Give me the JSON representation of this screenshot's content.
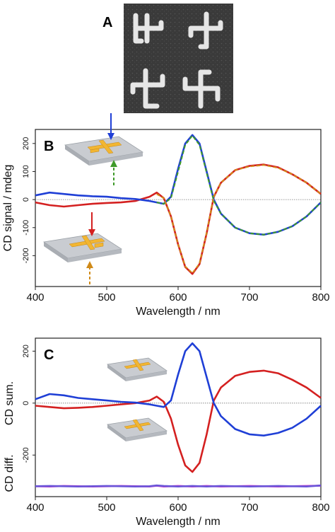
{
  "panel_labels": {
    "a": "A",
    "b": "B",
    "c": "C"
  },
  "colors": {
    "red": "#d42020",
    "blue": "#1f3fd6",
    "green": "#3f9a2a",
    "orange": "#d08a18",
    "magenta": "#cc33cc",
    "purple": "#6a55d8",
    "gold": "#f2b632",
    "plate": "#c9ccd1"
  },
  "chart_data": [
    {
      "panel": "B",
      "type": "line",
      "xlabel": "Wavelength / nm",
      "ylabel": "CD signal / mdeg",
      "xlim": [
        400,
        800
      ],
      "ylim": [
        -310,
        250
      ],
      "xticks": [
        "400",
        "500",
        "600",
        "700",
        "800"
      ],
      "yticks": [
        "200",
        "100",
        "0",
        "-100",
        "-200"
      ],
      "grid": false,
      "x": [
        400,
        420,
        440,
        460,
        480,
        500,
        520,
        540,
        560,
        570,
        580,
        590,
        600,
        610,
        620,
        630,
        640,
        650,
        660,
        680,
        700,
        720,
        740,
        760,
        780,
        800
      ],
      "series": [
        {
          "color": "red",
          "values": [
            -10,
            -20,
            -25,
            -20,
            -15,
            -12,
            -10,
            -5,
            10,
            25,
            5,
            -60,
            -160,
            -240,
            -265,
            -230,
            -120,
            10,
            60,
            105,
            120,
            125,
            115,
            90,
            60,
            20
          ]
        },
        {
          "color": "blue",
          "values": [
            15,
            25,
            20,
            15,
            12,
            10,
            5,
            2,
            -5,
            -10,
            -15,
            10,
            110,
            200,
            230,
            200,
            100,
            0,
            -50,
            -100,
            -120,
            -125,
            -115,
            -95,
            -60,
            -10
          ]
        },
        {
          "color": "green",
          "dashed": true,
          "values": [
            null,
            null,
            null,
            null,
            null,
            null,
            null,
            null,
            null,
            -10,
            -15,
            5,
            100,
            195,
            228,
            195,
            95,
            -5,
            -50,
            -100,
            -120,
            -125,
            -115,
            -95,
            -60,
            -10
          ]
        },
        {
          "color": "orange",
          "dashed": true,
          "values": [
            null,
            null,
            null,
            null,
            null,
            null,
            null,
            null,
            null,
            20,
            5,
            -60,
            -160,
            -238,
            -262,
            -228,
            -118,
            10,
            60,
            105,
            118,
            123,
            113,
            90,
            60,
            20
          ]
        }
      ]
    },
    {
      "panel": "C",
      "type": "line",
      "xlabel": "Wavelength / nm",
      "ylabel_top": "CD sum.",
      "ylabel_bottom": "CD diff.",
      "xlim": [
        400,
        800
      ],
      "ylim": [
        -360,
        250
      ],
      "xticks": [
        "400",
        "500",
        "600",
        "700",
        "800"
      ],
      "yticks": [
        "200",
        "0",
        "-200"
      ],
      "grid": false,
      "x": [
        400,
        420,
        440,
        460,
        480,
        500,
        520,
        540,
        560,
        570,
        580,
        590,
        600,
        610,
        620,
        630,
        640,
        650,
        660,
        680,
        700,
        720,
        740,
        760,
        780,
        800
      ],
      "series": [
        {
          "color": "red",
          "values": [
            -10,
            -15,
            -20,
            -18,
            -15,
            -10,
            -5,
            0,
            10,
            25,
            5,
            -60,
            -160,
            -240,
            -265,
            -230,
            -120,
            10,
            60,
            105,
            120,
            125,
            115,
            90,
            60,
            20
          ]
        },
        {
          "color": "blue",
          "values": [
            15,
            35,
            30,
            20,
            15,
            10,
            5,
            2,
            -5,
            -10,
            -15,
            10,
            110,
            200,
            230,
            200,
            100,
            0,
            -50,
            -100,
            -120,
            -125,
            -115,
            -95,
            -60,
            -10
          ]
        },
        {
          "color": "magenta",
          "values": [
            -320,
            -321,
            -319,
            -320,
            -321,
            -320,
            -319,
            -320,
            -321,
            -318,
            -321,
            -320,
            -319,
            -320,
            -321,
            -320,
            -319,
            -320,
            -321,
            -320,
            -319,
            -320,
            -321,
            -320,
            -319,
            -318
          ]
        },
        {
          "color": "purple",
          "values": [
            -320,
            -319,
            -320,
            -321,
            -320,
            -319,
            -320,
            -321,
            -320,
            -317,
            -319,
            -320,
            -321,
            -320,
            -319,
            -320,
            -321,
            -320,
            -319,
            -320,
            -321,
            -320,
            -319,
            -320,
            -321,
            -317
          ]
        }
      ]
    }
  ]
}
